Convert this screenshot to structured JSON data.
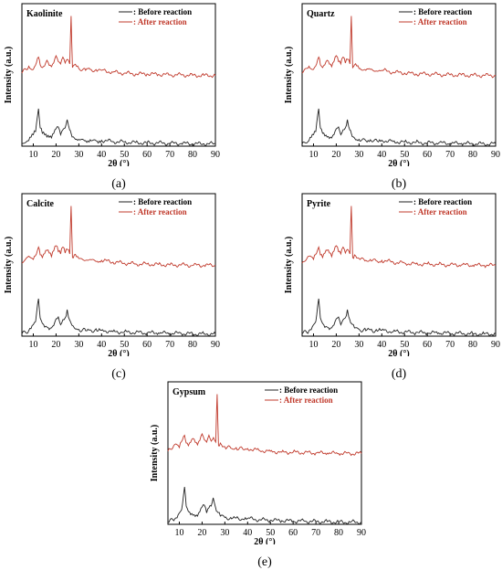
{
  "legend": {
    "before_label": ": Before reaction",
    "after_label": ": After reaction",
    "before_color": "#222222",
    "after_color": "#c0392b"
  },
  "axis": {
    "xlabel": "2θ (°)",
    "ylabel": "Intensity (a.u.)",
    "xlim": [
      5,
      90
    ],
    "xticks": [
      10,
      20,
      30,
      40,
      50,
      60,
      70,
      80,
      90
    ]
  },
  "chart_data": [
    {
      "type": "line",
      "title": "Kaolinite",
      "caption": "(a)",
      "xlabel": "2θ (°)",
      "ylabel": "Intensity (a.u.)",
      "xlim": [
        5,
        90
      ],
      "y_ticks_shown": false,
      "legend": "top-right",
      "series": [
        {
          "name": ": Before reaction",
          "color": "#222222",
          "x": [
            5,
            8,
            10,
            11,
            12.3,
            13,
            14,
            16,
            18,
            20,
            21,
            22,
            23,
            24,
            24.9,
            26,
            26.6,
            28,
            30,
            33,
            35,
            38,
            40,
            45,
            50,
            55,
            60,
            65,
            70,
            75,
            80,
            85,
            90
          ],
          "y": [
            0.05,
            0.12,
            0.25,
            0.32,
            0.82,
            0.4,
            0.28,
            0.2,
            0.18,
            0.38,
            0.42,
            0.25,
            0.36,
            0.4,
            0.58,
            0.35,
            0.28,
            0.18,
            0.15,
            0.12,
            0.14,
            0.11,
            0.13,
            0.1,
            0.09,
            0.08,
            0.07,
            0.07,
            0.06,
            0.06,
            0.05,
            0.05,
            0.05
          ]
        },
        {
          "name": ": After reaction",
          "color": "#c0392b",
          "x": [
            5,
            8,
            10,
            12.3,
            13,
            14,
            16,
            18,
            20,
            21,
            22,
            23,
            24,
            25,
            26,
            26.6,
            27.2,
            28,
            30,
            33,
            35,
            38,
            40,
            45,
            50,
            55,
            60,
            65,
            70,
            75,
            80,
            85,
            90
          ],
          "y": [
            1.6,
            1.75,
            1.68,
            1.95,
            1.78,
            1.72,
            1.88,
            1.74,
            1.98,
            1.85,
            1.8,
            1.95,
            1.82,
            1.9,
            1.8,
            2.85,
            1.72,
            1.78,
            1.7,
            1.66,
            1.68,
            1.64,
            1.66,
            1.62,
            1.6,
            1.58,
            1.58,
            1.57,
            1.56,
            1.56,
            1.55,
            1.55,
            1.55
          ]
        }
      ]
    },
    {
      "type": "line",
      "title": "Quartz",
      "caption": "(b)",
      "xlabel": "2θ (°)",
      "ylabel": "Intensity (a.u.)",
      "xlim": [
        5,
        90
      ],
      "y_ticks_shown": false,
      "legend": "top-right",
      "series": [
        {
          "name": ": Before reaction",
          "color": "#222222",
          "x": [
            5,
            8,
            10,
            11,
            12.3,
            13,
            14,
            16,
            18,
            20,
            21,
            22,
            23,
            24,
            24.9,
            26,
            26.6,
            28,
            30,
            33,
            35,
            38,
            40,
            45,
            50,
            55,
            60,
            65,
            70,
            75,
            80,
            85,
            90
          ],
          "y": [
            0.05,
            0.12,
            0.25,
            0.32,
            0.82,
            0.4,
            0.28,
            0.2,
            0.18,
            0.38,
            0.42,
            0.25,
            0.36,
            0.4,
            0.58,
            0.35,
            0.28,
            0.18,
            0.15,
            0.12,
            0.14,
            0.11,
            0.13,
            0.1,
            0.09,
            0.08,
            0.07,
            0.07,
            0.06,
            0.06,
            0.05,
            0.05,
            0.05
          ]
        },
        {
          "name": ": After reaction",
          "color": "#c0392b",
          "x": [
            5,
            8,
            10,
            12.3,
            13,
            14,
            16,
            18,
            20,
            21,
            22,
            23,
            24,
            25,
            26,
            26.6,
            27.2,
            28,
            30,
            33,
            35,
            38,
            40,
            45,
            50,
            55,
            60,
            65,
            70,
            75,
            80,
            85,
            90
          ],
          "y": [
            1.6,
            1.75,
            1.68,
            1.95,
            1.78,
            1.72,
            1.88,
            1.74,
            1.98,
            1.85,
            1.8,
            1.95,
            1.82,
            1.9,
            1.8,
            2.85,
            1.72,
            1.78,
            1.7,
            1.66,
            1.68,
            1.64,
            1.66,
            1.62,
            1.6,
            1.58,
            1.58,
            1.57,
            1.56,
            1.56,
            1.55,
            1.55,
            1.55
          ]
        }
      ]
    },
    {
      "type": "line",
      "title": "Calcite",
      "caption": "(c)",
      "xlabel": "2θ (°)",
      "ylabel": "Intensity (a.u.)",
      "xlim": [
        5,
        90
      ],
      "y_ticks_shown": false,
      "legend": "top-right",
      "series": [
        {
          "name": ": Before reaction",
          "color": "#222222",
          "x": [
            5,
            8,
            10,
            11,
            12.3,
            13,
            14,
            16,
            18,
            20,
            21,
            22,
            23,
            24,
            24.9,
            26,
            26.6,
            28,
            30,
            33,
            35,
            38,
            40,
            45,
            50,
            55,
            60,
            65,
            70,
            75,
            80,
            85,
            90
          ],
          "y": [
            0.05,
            0.12,
            0.25,
            0.32,
            0.82,
            0.4,
            0.28,
            0.2,
            0.18,
            0.38,
            0.42,
            0.25,
            0.36,
            0.4,
            0.58,
            0.35,
            0.28,
            0.18,
            0.15,
            0.12,
            0.14,
            0.11,
            0.13,
            0.1,
            0.09,
            0.08,
            0.07,
            0.07,
            0.06,
            0.06,
            0.05,
            0.05,
            0.05
          ]
        },
        {
          "name": ": After reaction",
          "color": "#c0392b",
          "x": [
            5,
            8,
            10,
            12.3,
            13,
            14,
            16,
            18,
            20,
            21,
            22,
            23,
            24,
            25,
            26,
            26.6,
            27.2,
            28,
            30,
            33,
            35,
            38,
            40,
            45,
            50,
            55,
            60,
            65,
            70,
            75,
            80,
            85,
            90
          ],
          "y": [
            1.6,
            1.75,
            1.68,
            1.95,
            1.78,
            1.72,
            1.88,
            1.74,
            1.98,
            1.85,
            1.8,
            1.95,
            1.82,
            1.9,
            1.8,
            2.85,
            1.72,
            1.78,
            1.7,
            1.66,
            1.68,
            1.64,
            1.66,
            1.62,
            1.6,
            1.58,
            1.58,
            1.57,
            1.56,
            1.56,
            1.55,
            1.55,
            1.55
          ]
        }
      ]
    },
    {
      "type": "line",
      "title": "Pyrite",
      "caption": "(d)",
      "xlabel": "2θ (°)",
      "ylabel": "Intensity (a.u.)",
      "xlim": [
        5,
        90
      ],
      "y_ticks_shown": false,
      "legend": "top-right",
      "series": [
        {
          "name": ": Before reaction",
          "color": "#222222",
          "x": [
            5,
            8,
            10,
            11,
            12.3,
            13,
            14,
            16,
            18,
            20,
            21,
            22,
            23,
            24,
            24.9,
            26,
            26.6,
            28,
            30,
            33,
            35,
            38,
            40,
            45,
            50,
            55,
            60,
            65,
            70,
            75,
            80,
            85,
            90
          ],
          "y": [
            0.05,
            0.12,
            0.25,
            0.32,
            0.82,
            0.4,
            0.28,
            0.2,
            0.18,
            0.38,
            0.42,
            0.25,
            0.36,
            0.4,
            0.58,
            0.35,
            0.28,
            0.18,
            0.15,
            0.12,
            0.14,
            0.11,
            0.13,
            0.1,
            0.09,
            0.08,
            0.07,
            0.07,
            0.06,
            0.06,
            0.05,
            0.05,
            0.05
          ]
        },
        {
          "name": ": After reaction",
          "color": "#c0392b",
          "x": [
            5,
            8,
            10,
            12.3,
            13,
            14,
            16,
            18,
            20,
            21,
            22,
            23,
            24,
            25,
            26,
            26.6,
            27.2,
            28,
            30,
            33,
            35,
            38,
            40,
            45,
            50,
            55,
            60,
            65,
            70,
            75,
            80,
            85,
            90
          ],
          "y": [
            1.6,
            1.75,
            1.68,
            1.95,
            1.78,
            1.72,
            1.88,
            1.74,
            1.98,
            1.85,
            1.8,
            1.95,
            1.82,
            1.9,
            1.8,
            2.85,
            1.72,
            1.78,
            1.7,
            1.66,
            1.68,
            1.64,
            1.66,
            1.62,
            1.6,
            1.58,
            1.58,
            1.57,
            1.56,
            1.56,
            1.55,
            1.55,
            1.55
          ]
        }
      ]
    },
    {
      "type": "line",
      "title": "Gypsum",
      "caption": "(e)",
      "xlabel": "2θ (°)",
      "ylabel": "Intensity (a.u.)",
      "xlim": [
        5,
        90
      ],
      "y_ticks_shown": false,
      "legend": "top-right",
      "series": [
        {
          "name": ": Before reaction",
          "color": "#222222",
          "x": [
            5,
            8,
            10,
            11,
            12.3,
            13,
            14,
            16,
            18,
            20,
            21,
            22,
            23,
            24,
            24.9,
            26,
            26.6,
            28,
            30,
            33,
            35,
            38,
            40,
            45,
            50,
            55,
            60,
            65,
            70,
            75,
            80,
            85,
            90
          ],
          "y": [
            0.05,
            0.12,
            0.25,
            0.32,
            0.82,
            0.4,
            0.28,
            0.2,
            0.18,
            0.38,
            0.42,
            0.25,
            0.36,
            0.4,
            0.58,
            0.35,
            0.28,
            0.18,
            0.15,
            0.12,
            0.14,
            0.11,
            0.13,
            0.1,
            0.09,
            0.08,
            0.07,
            0.07,
            0.06,
            0.06,
            0.05,
            0.05,
            0.05
          ]
        },
        {
          "name": ": After reaction",
          "color": "#c0392b",
          "x": [
            5,
            8,
            10,
            12.3,
            13,
            14,
            16,
            18,
            20,
            21,
            22,
            23,
            24,
            25,
            26,
            26.6,
            27.2,
            28,
            30,
            33,
            35,
            38,
            40,
            45,
            50,
            55,
            60,
            65,
            70,
            75,
            80,
            85,
            90
          ],
          "y": [
            1.6,
            1.75,
            1.68,
            1.95,
            1.78,
            1.72,
            1.88,
            1.74,
            1.98,
            1.85,
            1.8,
            1.95,
            1.82,
            1.9,
            1.8,
            2.85,
            1.72,
            1.78,
            1.7,
            1.66,
            1.68,
            1.64,
            1.66,
            1.62,
            1.6,
            1.58,
            1.58,
            1.57,
            1.56,
            1.56,
            1.55,
            1.55,
            1.55
          ]
        }
      ]
    }
  ]
}
